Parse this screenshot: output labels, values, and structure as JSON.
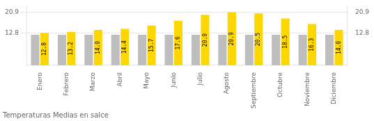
{
  "chart_data": {
    "type": "bar",
    "title": "Temperaturas Medias en salce",
    "categories": [
      "Enero",
      "Febrero",
      "Marzo",
      "Abril",
      "Mayo",
      "Junio",
      "Julio",
      "Agosto",
      "Septiembre",
      "Octubre",
      "Noviembre",
      "Diciembre"
    ],
    "series": [
      {
        "color": "#BEBEBE",
        "values": [
          12.1,
          12.1,
          12.1,
          12.1,
          12.1,
          12.1,
          12.1,
          12.1,
          12.1,
          12.1,
          12.1,
          12.1
        ]
      },
      {
        "color": "#FFD700",
        "values": [
          12.8,
          13.2,
          14.0,
          14.4,
          15.7,
          17.6,
          20.0,
          20.9,
          20.5,
          18.5,
          16.3,
          14.0
        ],
        "value_labels": [
          "12.8",
          "13.2",
          "14.0",
          "14.4",
          "15.7",
          "17.6",
          "20.0",
          "20.9",
          "20.5",
          "18.5",
          "16.3",
          "14.0"
        ],
        "data_labels": true
      }
    ],
    "ylim": [
      0,
      23.5
    ],
    "yticks": [
      12.8,
      20.9
    ],
    "y2lim": [
      0,
      23.5
    ],
    "y2ticks": [
      12.8,
      20.9
    ],
    "grid": true
  }
}
